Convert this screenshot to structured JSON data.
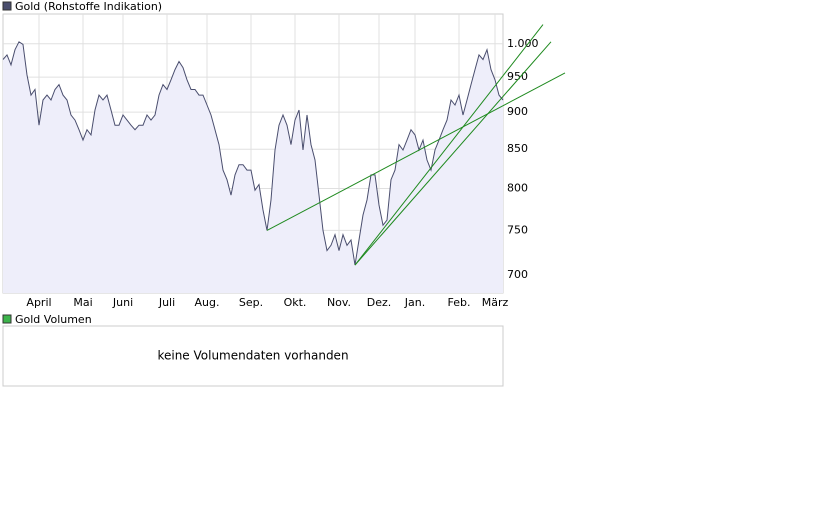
{
  "chart_data": {
    "type": "line",
    "legend_label": "Gold (Rohstoffe Indikation)",
    "log_scale": true,
    "grid": true,
    "categories": [
      null,
      null,
      null,
      null,
      null,
      null,
      null,
      null,
      null,
      "April",
      null,
      null,
      null,
      null,
      null,
      null,
      null,
      null,
      null,
      null,
      "Mai",
      null,
      null,
      null,
      null,
      null,
      null,
      null,
      null,
      null,
      "Juni",
      null,
      null,
      null,
      null,
      null,
      null,
      null,
      null,
      null,
      null,
      "Juli",
      null,
      null,
      null,
      null,
      null,
      null,
      null,
      null,
      null,
      "Aug.",
      null,
      null,
      null,
      null,
      null,
      null,
      null,
      null,
      null,
      null,
      "Sep.",
      null,
      null,
      null,
      null,
      null,
      null,
      null,
      null,
      null,
      null,
      "Okt.",
      null,
      null,
      null,
      null,
      null,
      null,
      null,
      null,
      null,
      null,
      "Nov.",
      null,
      null,
      null,
      null,
      null,
      null,
      null,
      null,
      null,
      "Dez.",
      null,
      null,
      null,
      null,
      null,
      null,
      null,
      null,
      "Jan.",
      null,
      null,
      null,
      null,
      null,
      null,
      null,
      null,
      null,
      null,
      "Feb.",
      null,
      null,
      null,
      null,
      null,
      null,
      null,
      null,
      "März",
      null,
      null
    ],
    "series": [
      {
        "color": "#4a4e6e",
        "fill": "#eeeefa",
        "values": [
          976,
          983,
          968,
          991,
          1003,
          999,
          953,
          924,
          932,
          882,
          917,
          924,
          917,
          932,
          939,
          924,
          917,
          896,
          889,
          876,
          862,
          876,
          869,
          903,
          924,
          917,
          924,
          903,
          882,
          882,
          896,
          889,
          882,
          876,
          882,
          882,
          896,
          889,
          896,
          924,
          939,
          932,
          946,
          961,
          973,
          964,
          946,
          932,
          932,
          924,
          924,
          910,
          896,
          876,
          856,
          823,
          811,
          792,
          817,
          830,
          830,
          823,
          823,
          798,
          805,
          774,
          750,
          786,
          849,
          882,
          896,
          882,
          856,
          889,
          903,
          849,
          896,
          856,
          836,
          792,
          750,
          727,
          733,
          745,
          727,
          745,
          733,
          739,
          711,
          739,
          768,
          786,
          817,
          817,
          780,
          756,
          762,
          811,
          823,
          856,
          849,
          862,
          876,
          869,
          849,
          862,
          836,
          823,
          849,
          862,
          876,
          889,
          917,
          910,
          924,
          896,
          917,
          939,
          961,
          983,
          976,
          991,
          961,
          946,
          924,
          917
        ]
      }
    ],
    "trendlines": {
      "color": "#1f8a1f",
      "lines": [
        {
          "x": [
            66,
            140.5
          ],
          "y": [
            750,
            956
          ]
        },
        {
          "x": [
            88,
            137
          ],
          "y": [
            711,
            1003
          ]
        },
        {
          "x": [
            88,
            135
          ],
          "y": [
            711,
            1030
          ]
        }
      ]
    },
    "ylim": [
      681,
      1047
    ],
    "yticks": [
      700,
      750,
      800,
      850,
      900,
      950,
      {
        "value": 1000,
        "label": "1.000"
      }
    ]
  },
  "volume_panel": {
    "legend_label": "Gold Volumen",
    "color": "#3cb44b",
    "message": "keine Volumendaten vorhanden"
  }
}
